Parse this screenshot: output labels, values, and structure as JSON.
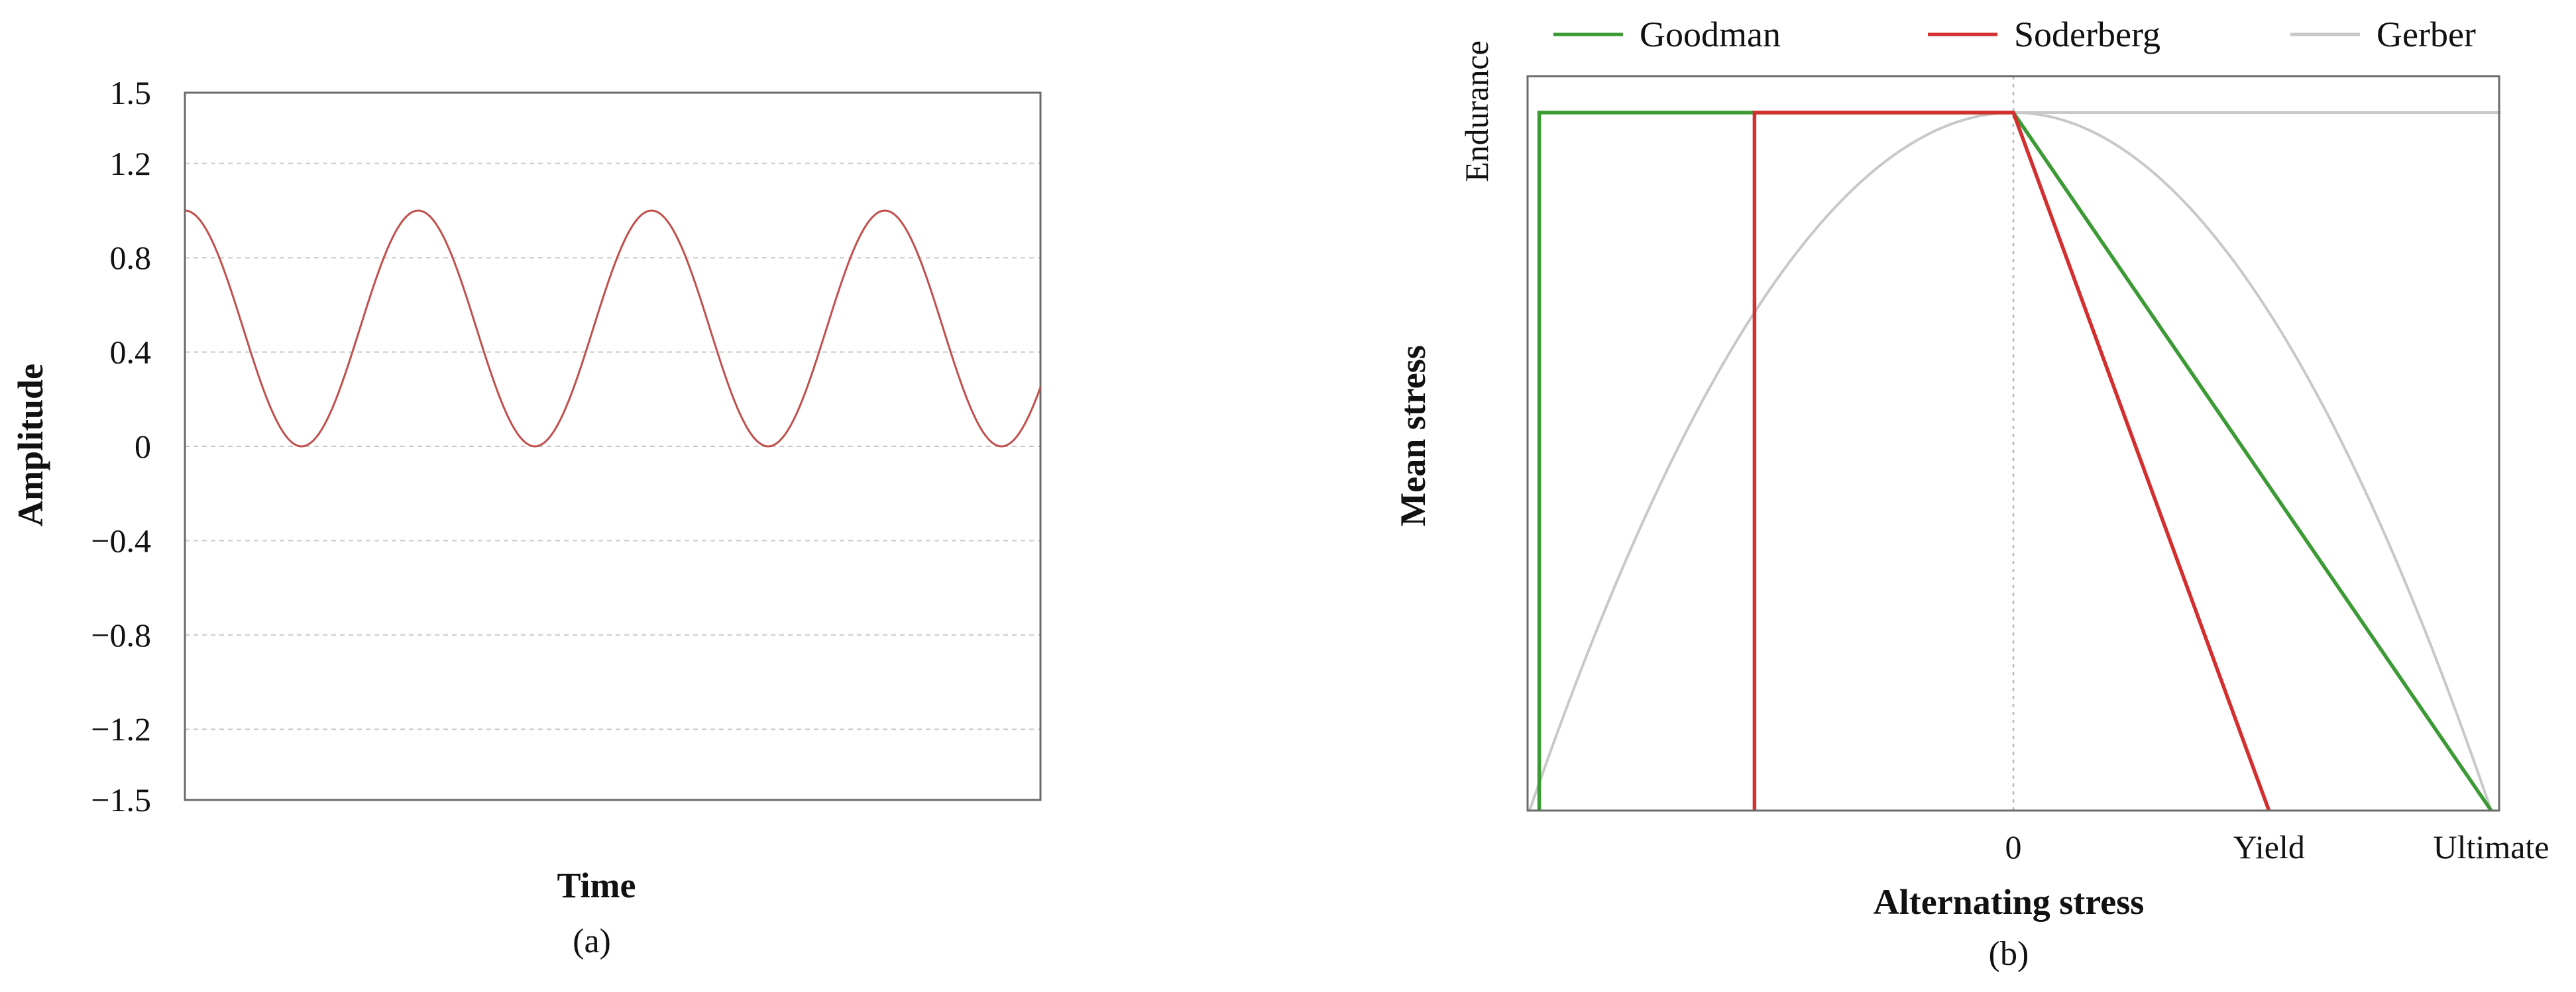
{
  "chart_data": [
    {
      "type": "line",
      "caption": "(a)",
      "xlabel": "Time",
      "ylabel": "Amplitude",
      "ylim": [
        -1.5,
        1.5
      ],
      "grid": true,
      "yticks": [
        {
          "value": 1.5,
          "label": "1.5"
        },
        {
          "value": 1.2,
          "label": "1.2"
        },
        {
          "value": 0.8,
          "label": "0.8"
        },
        {
          "value": 0.4,
          "label": "0.4"
        },
        {
          "value": 0,
          "label": "0"
        },
        {
          "value": -0.4,
          "label": "−0.4"
        },
        {
          "value": -0.8,
          "label": "−0.8"
        },
        {
          "value": -1.2,
          "label": "−1.2"
        },
        {
          "value": -1.5,
          "label": "−1.5"
        }
      ],
      "series": [
        {
          "color": "#c0504d",
          "function": "0.5 + 0.5*cos(t)",
          "x": [
            0,
            0.5,
            1,
            1.5,
            2,
            2.5,
            3,
            3.5,
            4,
            4.5,
            5,
            5.5,
            6,
            6.5,
            7,
            7.5,
            8,
            8.5,
            9,
            9.5,
            10,
            10.5,
            11,
            11.5,
            12,
            12.5,
            13,
            13.5,
            14,
            14.5,
            15,
            15.5,
            16,
            16.5,
            17,
            17.5,
            18,
            18.5,
            19,
            19.5,
            20,
            20.5,
            21,
            21.5,
            22,
            22.5,
            23,
            23.5,
            24,
            24.5,
            25,
            25.5,
            26,
            26.5,
            27,
            27.5,
            28,
            28.5,
            29,
            29.5,
            30,
            30.5,
            31,
            31.5,
            32,
            32.5,
            33,
            33.5,
            34,
            34.5,
            35,
            35.5,
            36,
            36.5,
            37,
            37.5,
            38,
            38.5,
            39,
            39.5,
            40
          ],
          "t_max_radians": 23.04
        }
      ]
    },
    {
      "type": "line",
      "caption": "(b)",
      "xlabel": "Alternating stress",
      "ylabel": "Mean stress",
      "xlim": [
        -1.0,
        1.0
      ],
      "ylim": [
        0,
        1.0
      ],
      "xticks": [
        {
          "value": 0,
          "label": "0"
        },
        {
          "value": 0.535,
          "label": "Yield"
        },
        {
          "value": 1.0,
          "label": "Ultimate"
        }
      ],
      "yticks": [
        {
          "value": 1.0,
          "label": "Endurance"
        }
      ],
      "legend": {
        "position": "top"
      },
      "series": [
        {
          "name": "Goodman",
          "color": "#3c9a34",
          "x": [
            -0.98,
            -0.98,
            0,
            1.0
          ],
          "y": [
            0,
            1.0,
            1.0,
            0
          ]
        },
        {
          "name": "Soderberg",
          "color": "#d32f2f",
          "x": [
            -0.535,
            -0.535,
            0,
            0.535
          ],
          "y": [
            0,
            1.0,
            1.0,
            0
          ]
        },
        {
          "name": "Gerber",
          "color": "#c8c8c8",
          "x": [
            -1.0,
            -0.9,
            -0.8,
            -0.7,
            -0.6,
            -0.5,
            -0.4,
            -0.3,
            -0.2,
            -0.1,
            0,
            0.1,
            0.2,
            0.3,
            0.4,
            0.5,
            0.6,
            0.7,
            0.8,
            0.9,
            1.0
          ],
          "y": [
            0,
            0.19,
            0.36,
            0.51,
            0.64,
            0.75,
            0.84,
            0.91,
            0.96,
            0.99,
            1.0,
            0.99,
            0.96,
            0.91,
            0.84,
            0.75,
            0.64,
            0.51,
            0.36,
            0.19,
            0
          ],
          "horizontal_line": {
            "x": [
              0,
              1.02
            ],
            "y": 1.0
          }
        }
      ]
    }
  ]
}
